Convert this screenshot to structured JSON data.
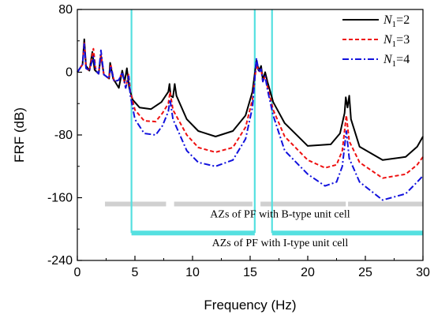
{
  "chart_data": {
    "type": "line",
    "xlabel": "Frequency (Hz)",
    "ylabel": "FRF (dB)",
    "xlim": [
      0,
      30
    ],
    "ylim": [
      -240,
      80
    ],
    "xticks": [
      0,
      5,
      10,
      15,
      20,
      25,
      30
    ],
    "yticks": [
      80,
      0,
      -80,
      -160,
      -240
    ],
    "grid": false,
    "legend_position": "top-right",
    "series": [
      {
        "name_parts": [
          "N",
          "1",
          "=2"
        ],
        "color": "#000000",
        "style": "solid",
        "points": [
          [
            0,
            0
          ],
          [
            0.45,
            10
          ],
          [
            0.6,
            42
          ],
          [
            0.75,
            8
          ],
          [
            1.05,
            2
          ],
          [
            1.3,
            26
          ],
          [
            1.5,
            3
          ],
          [
            1.85,
            -2
          ],
          [
            2.05,
            22
          ],
          [
            2.3,
            -3
          ],
          [
            2.75,
            -8
          ],
          [
            2.85,
            12
          ],
          [
            3.1,
            -8
          ],
          [
            3.6,
            -20
          ],
          [
            3.9,
            2
          ],
          [
            4.1,
            -12
          ],
          [
            4.3,
            5
          ],
          [
            4.5,
            -20
          ],
          [
            4.8,
            -35
          ],
          [
            5.4,
            -45
          ],
          [
            6.4,
            -47
          ],
          [
            7.3,
            -38
          ],
          [
            7.9,
            -25
          ],
          [
            8.0,
            -15
          ],
          [
            8.1,
            -30
          ],
          [
            8.3,
            -32
          ],
          [
            8.45,
            -15
          ],
          [
            8.6,
            -30
          ],
          [
            9.5,
            -60
          ],
          [
            10.5,
            -75
          ],
          [
            12.0,
            -82
          ],
          [
            13.5,
            -75
          ],
          [
            14.6,
            -55
          ],
          [
            15.2,
            -25
          ],
          [
            15.55,
            15
          ],
          [
            15.75,
            2
          ],
          [
            15.95,
            8
          ],
          [
            16.1,
            -10
          ],
          [
            16.3,
            0
          ],
          [
            16.5,
            -12
          ],
          [
            17,
            -38
          ],
          [
            18,
            -65
          ],
          [
            20,
            -94
          ],
          [
            22,
            -92
          ],
          [
            22.8,
            -78
          ],
          [
            23.2,
            -52
          ],
          [
            23.3,
            -32
          ],
          [
            23.45,
            -45
          ],
          [
            23.6,
            -30
          ],
          [
            23.75,
            -60
          ],
          [
            24.5,
            -95
          ],
          [
            26.5,
            -112
          ],
          [
            28.5,
            -108
          ],
          [
            29.5,
            -95
          ],
          [
            30,
            -82
          ]
        ]
      },
      {
        "name_parts": [
          "N",
          "1",
          "=3"
        ],
        "color": "#ee1111",
        "style": "dash",
        "points": [
          [
            0,
            0
          ],
          [
            0.45,
            10
          ],
          [
            0.6,
            38
          ],
          [
            0.75,
            5
          ],
          [
            1.05,
            2
          ],
          [
            1.4,
            30
          ],
          [
            1.6,
            2
          ],
          [
            1.85,
            -2
          ],
          [
            2.05,
            22
          ],
          [
            2.3,
            -3
          ],
          [
            2.75,
            -8
          ],
          [
            2.9,
            10
          ],
          [
            3.2,
            -12
          ],
          [
            3.6,
            -10
          ],
          [
            3.9,
            0
          ],
          [
            4.2,
            -20
          ],
          [
            4.45,
            -2
          ],
          [
            4.6,
            -25
          ],
          [
            5.0,
            -48
          ],
          [
            5.8,
            -62
          ],
          [
            6.8,
            -63
          ],
          [
            7.4,
            -52
          ],
          [
            7.9,
            -40
          ],
          [
            8.05,
            -25
          ],
          [
            8.3,
            -48
          ],
          [
            9.5,
            -80
          ],
          [
            10.5,
            -96
          ],
          [
            12.0,
            -102
          ],
          [
            13.5,
            -96
          ],
          [
            14.6,
            -70
          ],
          [
            15.2,
            -35
          ],
          [
            15.55,
            10
          ],
          [
            15.75,
            0
          ],
          [
            15.95,
            4
          ],
          [
            16.1,
            -12
          ],
          [
            16.3,
            -5
          ],
          [
            16.5,
            -18
          ],
          [
            17,
            -48
          ],
          [
            18,
            -82
          ],
          [
            20,
            -112
          ],
          [
            21.5,
            -122
          ],
          [
            22.5,
            -118
          ],
          [
            23.0,
            -100
          ],
          [
            23.35,
            -55
          ],
          [
            23.6,
            -88
          ],
          [
            24.5,
            -115
          ],
          [
            26.5,
            -135
          ],
          [
            28.5,
            -130
          ],
          [
            29.5,
            -118
          ],
          [
            30,
            -108
          ]
        ]
      },
      {
        "name_parts": [
          "N",
          "1",
          "=4"
        ],
        "color": "#1111dd",
        "style": "dashdot",
        "points": [
          [
            0,
            0
          ],
          [
            0.45,
            10
          ],
          [
            0.6,
            36
          ],
          [
            0.75,
            5
          ],
          [
            1.05,
            2
          ],
          [
            1.4,
            20
          ],
          [
            1.6,
            2
          ],
          [
            1.85,
            -2
          ],
          [
            2.05,
            28
          ],
          [
            2.3,
            -3
          ],
          [
            2.75,
            -8
          ],
          [
            2.9,
            8
          ],
          [
            3.2,
            -12
          ],
          [
            3.6,
            -10
          ],
          [
            3.9,
            0
          ],
          [
            4.2,
            -20
          ],
          [
            4.45,
            -5
          ],
          [
            4.6,
            -30
          ],
          [
            5.0,
            -60
          ],
          [
            5.8,
            -78
          ],
          [
            6.8,
            -80
          ],
          [
            7.4,
            -68
          ],
          [
            7.9,
            -50
          ],
          [
            8.05,
            -35
          ],
          [
            8.3,
            -60
          ],
          [
            9.5,
            -100
          ],
          [
            10.5,
            -115
          ],
          [
            12.0,
            -120
          ],
          [
            13.5,
            -112
          ],
          [
            14.6,
            -85
          ],
          [
            15.2,
            -45
          ],
          [
            15.55,
            18
          ],
          [
            15.75,
            0
          ],
          [
            15.95,
            4
          ],
          [
            16.1,
            -12
          ],
          [
            16.3,
            -5
          ],
          [
            16.5,
            -22
          ],
          [
            17,
            -55
          ],
          [
            18,
            -100
          ],
          [
            20,
            -130
          ],
          [
            21.5,
            -145
          ],
          [
            22.5,
            -140
          ],
          [
            23.0,
            -120
          ],
          [
            23.35,
            -75
          ],
          [
            23.6,
            -110
          ],
          [
            24.5,
            -140
          ],
          [
            26.5,
            -163
          ],
          [
            28.5,
            -155
          ],
          [
            29.5,
            -140
          ],
          [
            30,
            -132
          ]
        ]
      }
    ],
    "vertical_lines": {
      "color": "#55e0e0",
      "x": [
        4.7,
        15.4,
        16.9
      ],
      "y_range": [
        80,
        -205
      ]
    },
    "band_gaps": [
      {
        "label": "AZs of PF with B-type unit cell",
        "color": "#d0d0d0",
        "y": -168,
        "ranges": [
          [
            2.4,
            7.7
          ],
          [
            8.4,
            15.2
          ],
          [
            15.9,
            23.3
          ],
          [
            23.5,
            30
          ]
        ]
      },
      {
        "label": "AZs of PF with I-type unit cell",
        "color": "#55e0e0",
        "y": -205,
        "ranges": [
          [
            4.7,
            15.4
          ],
          [
            16.9,
            30
          ]
        ]
      }
    ]
  }
}
